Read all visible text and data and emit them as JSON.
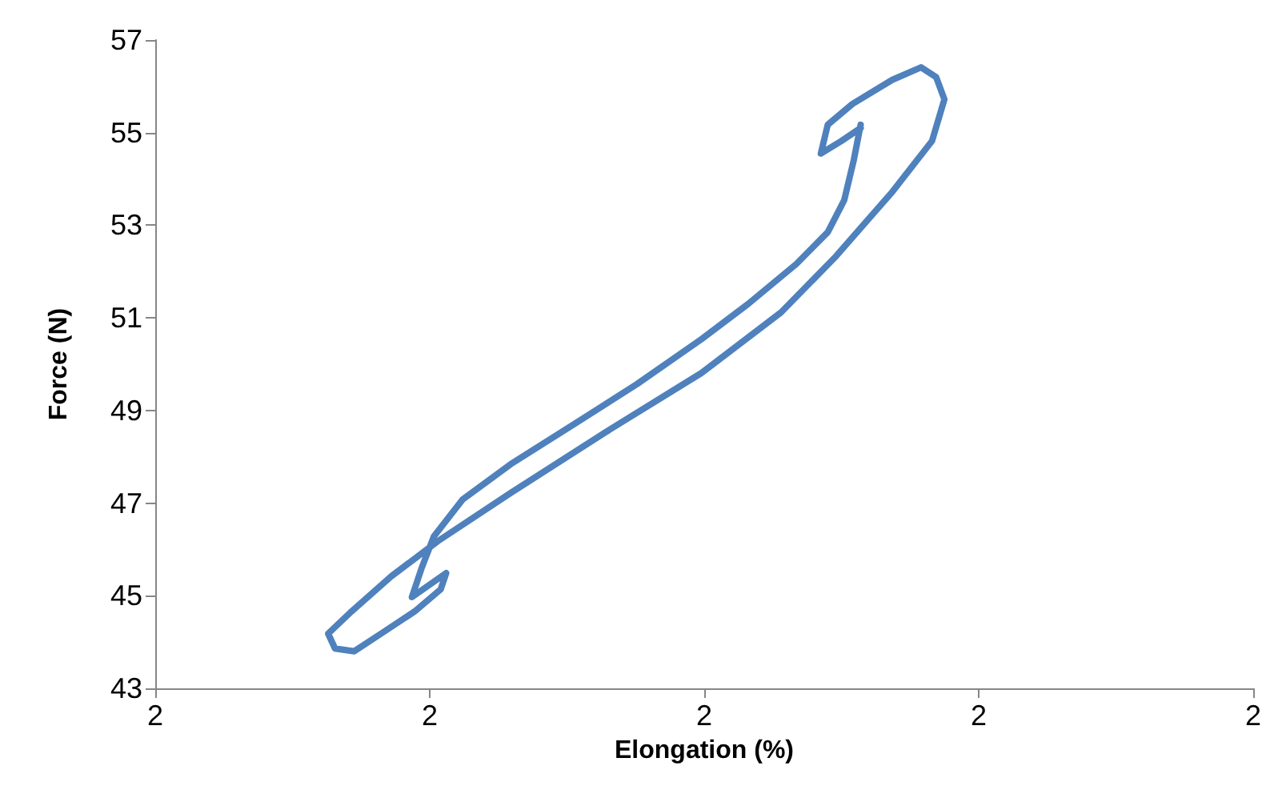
{
  "chart_data": {
    "type": "line",
    "xlabel": "Elongation (%)",
    "ylabel": "Force (N)",
    "x": [
      2.114,
      2.109,
      2.102,
      2.09,
      2.067,
      2.032,
      1.998,
      1.951,
      1.905,
      1.859,
      1.824,
      1.803,
      1.794,
      1.787,
      1.812,
      1.808,
      1.789,
      1.766,
      1.745,
      1.731,
      1.726,
      1.743,
      1.772,
      1.806,
      1.859,
      1.928,
      1.998,
      2.056,
      2.096,
      2.137,
      2.166,
      2.175,
      2.169,
      2.158,
      2.137,
      2.108,
      2.09,
      2.085,
      2.1,
      2.114
    ],
    "series": [
      {
        "color": "#4f81bd",
        "values": [
          55.17,
          54.41,
          53.54,
          52.85,
          52.16,
          51.3,
          50.54,
          49.57,
          48.7,
          47.84,
          47.08,
          46.28,
          45.59,
          44.97,
          45.49,
          45.14,
          44.66,
          44.21,
          43.8,
          43.86,
          44.18,
          44.66,
          45.42,
          46.18,
          47.22,
          48.53,
          49.81,
          51.12,
          52.33,
          53.72,
          54.82,
          55.72,
          56.2,
          56.41,
          56.14,
          55.62,
          55.17,
          54.55,
          54.82,
          55.1
        ]
      }
    ],
    "xlim": [
      1.6,
      2.4
    ],
    "xticks": [
      {
        "value": 1.6,
        "label": "2"
      },
      {
        "value": 1.8,
        "label": "2"
      },
      {
        "value": 2.0,
        "label": "2"
      },
      {
        "value": 2.2,
        "label": "2"
      },
      {
        "value": 2.4,
        "label": "2"
      }
    ],
    "ylim": [
      43,
      57
    ],
    "yticks": [
      43,
      45,
      47,
      49,
      51,
      53,
      55,
      57
    ],
    "grid": false,
    "marker": "none",
    "line_style": "solid"
  }
}
